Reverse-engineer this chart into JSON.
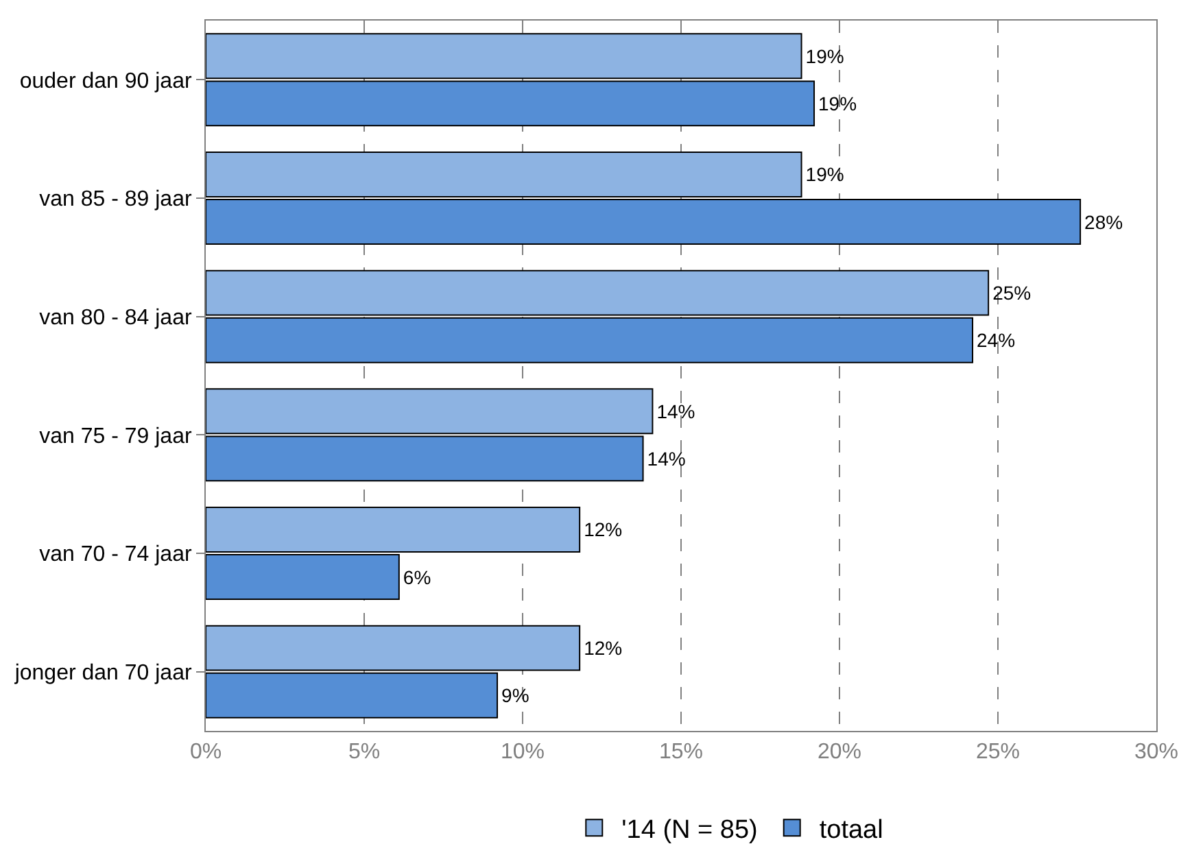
{
  "chart_data": {
    "type": "bar",
    "orientation": "horizontal",
    "categories": [
      "ouder dan 90 jaar",
      "van 85 - 89 jaar",
      "van 80 - 84 jaar",
      "van 75 - 79 jaar",
      "van 70 - 74 jaar",
      "jonger dan 70 jaar"
    ],
    "series": [
      {
        "name": "'14 (N = 85)",
        "color": "#8db3e2",
        "values": [
          18.8,
          18.8,
          24.7,
          14.1,
          11.8,
          11.8
        ],
        "value_labels": [
          "19%",
          "19%",
          "25%",
          "14%",
          "12%",
          "12%"
        ]
      },
      {
        "name": "totaal",
        "color": "#558ed5",
        "values": [
          19.2,
          27.6,
          24.2,
          13.8,
          6.1,
          9.2
        ],
        "value_labels": [
          "19%",
          "28%",
          "24%",
          "14%",
          "6%",
          "9%"
        ]
      }
    ],
    "xlim": [
      0,
      30
    ],
    "xticks": [
      {
        "value": 0,
        "label": "0%"
      },
      {
        "value": 5,
        "label": "5%"
      },
      {
        "value": 10,
        "label": "10%"
      },
      {
        "value": 15,
        "label": "15%"
      },
      {
        "value": 20,
        "label": "20%"
      },
      {
        "value": 25,
        "label": "25%"
      },
      {
        "value": 30,
        "label": "30%"
      }
    ],
    "grid": "x",
    "legend": "bottom"
  }
}
